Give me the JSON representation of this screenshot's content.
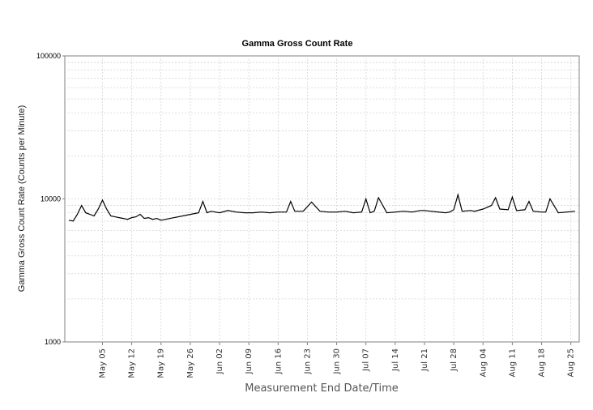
{
  "chart_data": {
    "type": "line",
    "title": "Gamma Gross Count Rate",
    "xlabel": "Measurement End Date/Time",
    "ylabel": "Gamma Gross Count Rate (Counts per Minute)",
    "yscale": "log",
    "ylim": [
      1000,
      100000
    ],
    "y_ticks": [
      "100000",
      "10000",
      "1000"
    ],
    "xlim": [
      "04-26",
      "08-27"
    ],
    "x_tick_labels": [
      {
        "label": "May 05",
        "date": "05-05"
      },
      {
        "label": "May 12",
        "date": "05-12"
      },
      {
        "label": "May 19",
        "date": "05-19"
      },
      {
        "label": "May 26",
        "date": "05-26"
      },
      {
        "label": "Jun 02",
        "date": "06-02"
      },
      {
        "label": "Jun 09",
        "date": "06-09"
      },
      {
        "label": "Jun 16",
        "date": "06-16"
      },
      {
        "label": "Jun 23",
        "date": "06-23"
      },
      {
        "label": "Jun 30",
        "date": "06-30"
      },
      {
        "label": "Jul 07",
        "date": "07-07"
      },
      {
        "label": "Jul 14",
        "date": "07-14"
      },
      {
        "label": "Jul 21",
        "date": "07-21"
      },
      {
        "label": "Jul 28",
        "date": "07-28"
      },
      {
        "label": "Aug 04",
        "date": "08-04"
      },
      {
        "label": "Aug 11",
        "date": "08-11"
      },
      {
        "label": "Aug 18",
        "date": "08-18"
      },
      {
        "label": "Aug 25",
        "date": "08-25"
      }
    ],
    "grid": true,
    "legend": "none",
    "line_color": "#000000",
    "series": [
      {
        "x": [
          "04-27",
          "04-28",
          "04-29",
          "04-30",
          "05-01",
          "05-02",
          "05-03",
          "05-04",
          "05-05",
          "05-06",
          "05-07",
          "05-08",
          "05-09",
          "05-10",
          "05-11",
          "05-12",
          "05-13",
          "05-14",
          "05-15",
          "05-16",
          "05-17",
          "05-18",
          "05-19",
          "05-27",
          "05-28",
          "05-29",
          "05-30",
          "05-31",
          "06-01",
          "06-02",
          "06-04",
          "06-06",
          "06-08",
          "06-10",
          "06-12",
          "06-14",
          "06-16",
          "06-18",
          "06-19",
          "06-20",
          "06-22",
          "06-24",
          "06-26",
          "06-28",
          "06-30",
          "07-02",
          "07-04",
          "07-06",
          "07-07",
          "07-08",
          "07-09",
          "07-10",
          "07-12",
          "07-14",
          "07-16",
          "07-18",
          "07-20",
          "07-21",
          "07-26",
          "07-27",
          "07-28",
          "07-29",
          "07-30",
          "08-01",
          "08-02",
          "08-04",
          "08-06",
          "08-07",
          "08-08",
          "08-10",
          "08-11",
          "08-12",
          "08-14",
          "08-15",
          "08-16",
          "08-18",
          "08-19",
          "08-20",
          "08-22",
          "08-24",
          "08-26"
        ],
        "y": [
          7100,
          7000,
          7800,
          9000,
          8000,
          7800,
          7600,
          8500,
          9800,
          8500,
          7600,
          7500,
          7400,
          7300,
          7200,
          7400,
          7500,
          7800,
          7300,
          7400,
          7200,
          7300,
          7100,
          7900,
          8000,
          9600,
          8000,
          8200,
          8100,
          8000,
          8300,
          8100,
          8000,
          8000,
          8100,
          8000,
          8100,
          8100,
          9600,
          8200,
          8200,
          9500,
          8200,
          8100,
          8100,
          8200,
          8000,
          8100,
          10000,
          8000,
          8200,
          10200,
          8000,
          8100,
          8200,
          8100,
          8300,
          8300,
          8000,
          8100,
          8400,
          10700,
          8200,
          8300,
          8200,
          8500,
          9000,
          10200,
          8500,
          8400,
          10300,
          8300,
          8400,
          9600,
          8200,
          8100,
          8100,
          10000,
          8000,
          8100,
          8200
        ]
      }
    ]
  }
}
